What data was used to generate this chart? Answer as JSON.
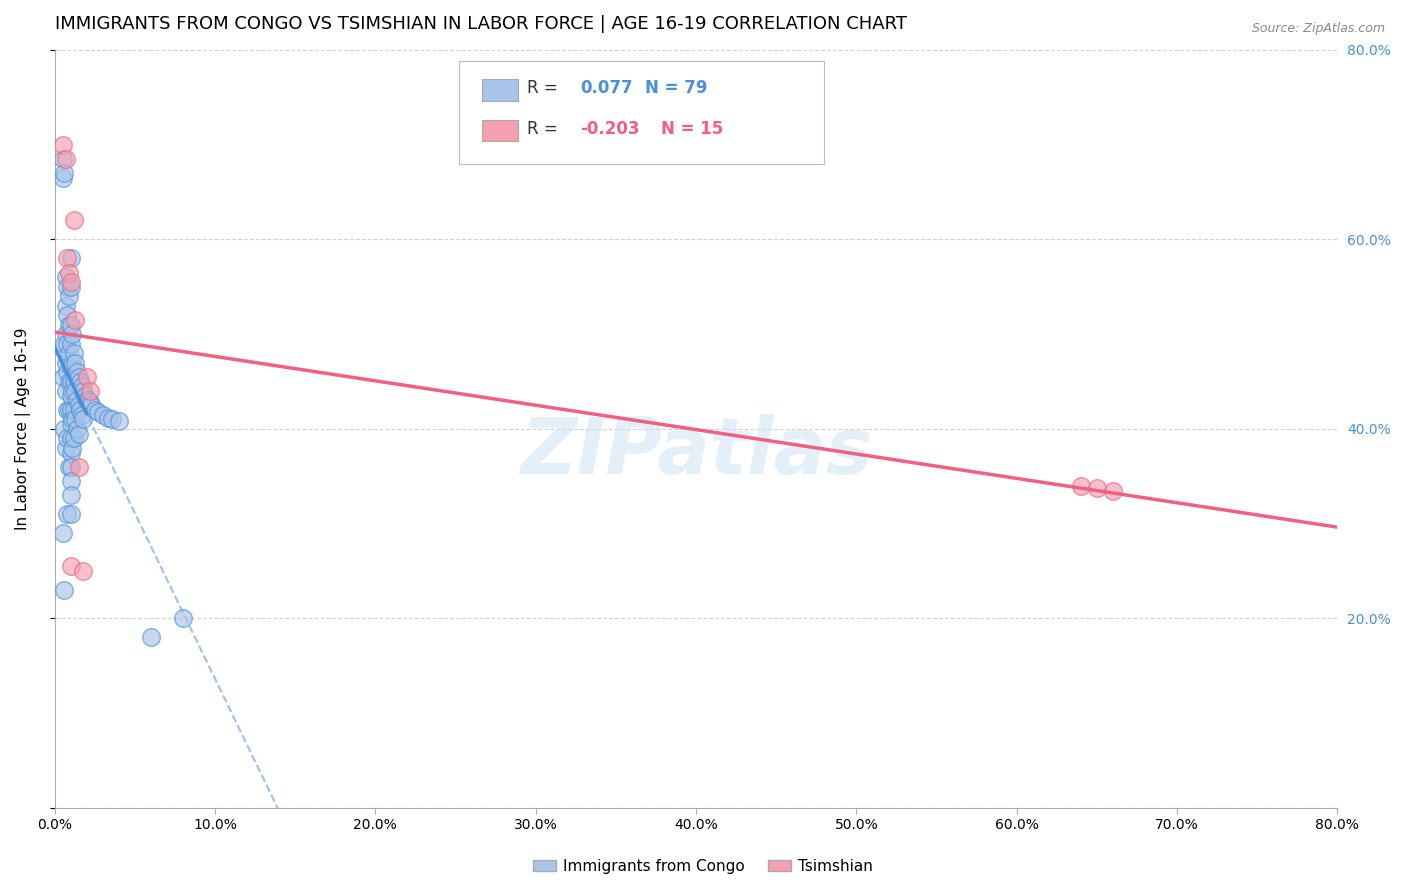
{
  "title": "IMMIGRANTS FROM CONGO VS TSIMSHIAN IN LABOR FORCE | AGE 16-19 CORRELATION CHART",
  "source": "Source: ZipAtlas.com",
  "ylabel": "In Labor Force | Age 16-19",
  "xlim": [
    0.0,
    0.8
  ],
  "ylim": [
    0.0,
    0.8
  ],
  "congo_R": 0.077,
  "congo_N": 79,
  "tsimshian_R": -0.203,
  "tsimshian_N": 15,
  "congo_color": "#a8c4e8",
  "tsimshian_color": "#f4a0b0",
  "congo_line_color": "#4a90d9",
  "tsimshian_line_color": "#f06080",
  "dashed_line_color": "#8ab8e8",
  "watermark": "ZIPatlas",
  "title_fontsize": 13,
  "axis_label_fontsize": 11,
  "tick_fontsize": 10,
  "right_tick_color": "#4a90d9",
  "congo_x": [
    0.005,
    0.005,
    0.005,
    0.005,
    0.006,
    0.006,
    0.006,
    0.006,
    0.007,
    0.007,
    0.007,
    0.007,
    0.007,
    0.007,
    0.008,
    0.008,
    0.008,
    0.008,
    0.008,
    0.008,
    0.008,
    0.009,
    0.009,
    0.009,
    0.009,
    0.009,
    0.009,
    0.01,
    0.01,
    0.01,
    0.01,
    0.01,
    0.01,
    0.01,
    0.01,
    0.01,
    0.01,
    0.01,
    0.01,
    0.01,
    0.01,
    0.01,
    0.011,
    0.011,
    0.011,
    0.011,
    0.011,
    0.012,
    0.012,
    0.012,
    0.012,
    0.013,
    0.013,
    0.013,
    0.014,
    0.014,
    0.014,
    0.015,
    0.015,
    0.015,
    0.016,
    0.016,
    0.017,
    0.017,
    0.018,
    0.018,
    0.019,
    0.02,
    0.021,
    0.022,
    0.023,
    0.025,
    0.027,
    0.03,
    0.033,
    0.036,
    0.04,
    0.06,
    0.08
  ],
  "congo_y": [
    0.685,
    0.665,
    0.455,
    0.29,
    0.67,
    0.49,
    0.4,
    0.23,
    0.56,
    0.53,
    0.5,
    0.47,
    0.44,
    0.38,
    0.55,
    0.52,
    0.49,
    0.46,
    0.42,
    0.39,
    0.31,
    0.54,
    0.51,
    0.48,
    0.45,
    0.42,
    0.36,
    0.58,
    0.55,
    0.51,
    0.49,
    0.465,
    0.45,
    0.435,
    0.42,
    0.405,
    0.39,
    0.375,
    0.36,
    0.345,
    0.33,
    0.31,
    0.5,
    0.47,
    0.44,
    0.41,
    0.38,
    0.48,
    0.45,
    0.42,
    0.39,
    0.47,
    0.44,
    0.41,
    0.46,
    0.43,
    0.4,
    0.455,
    0.425,
    0.395,
    0.45,
    0.42,
    0.445,
    0.415,
    0.44,
    0.41,
    0.435,
    0.43,
    0.43,
    0.428,
    0.425,
    0.42,
    0.418,
    0.415,
    0.412,
    0.41,
    0.408,
    0.18,
    0.2
  ],
  "tsimshian_x": [
    0.005,
    0.007,
    0.008,
    0.009,
    0.01,
    0.01,
    0.012,
    0.013,
    0.015,
    0.018,
    0.02,
    0.022,
    0.64,
    0.65,
    0.66
  ],
  "tsimshian_y": [
    0.7,
    0.685,
    0.58,
    0.565,
    0.555,
    0.255,
    0.62,
    0.515,
    0.36,
    0.25,
    0.455,
    0.44,
    0.34,
    0.338,
    0.335
  ]
}
